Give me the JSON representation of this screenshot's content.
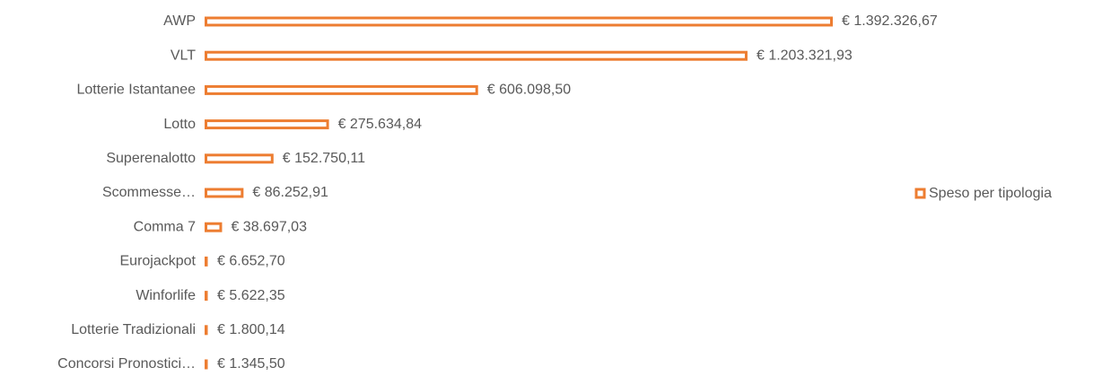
{
  "chart_data": {
    "type": "bar",
    "orientation": "horizontal",
    "categories": [
      "AWP",
      "VLT",
      "Lotterie Istantanee",
      "Lotto",
      "Superenalotto",
      "Scommesse…",
      "Comma 7",
      "Eurojackpot",
      "Winforlife",
      "Lotterie Tradizionali",
      "Concorsi Pronostici…"
    ],
    "series": [
      {
        "name": "Speso per tipologia",
        "color": "#ed7d31",
        "values": [
          1392326.67,
          1203321.93,
          606098.5,
          275634.84,
          152750.11,
          86252.91,
          38697.03,
          6652.7,
          5622.35,
          1800.14,
          1345.5
        ],
        "value_labels": [
          "€ 1.392.326,67",
          "€ 1.203.321,93",
          "€ 606.098,50",
          "€ 275.634,84",
          "€ 152.750,11",
          "€ 86.252,91",
          "€ 38.697,03",
          "€ 6.652,70",
          "€ 5.622,35",
          "€ 1.800,14",
          "€ 1.345,50"
        ]
      }
    ],
    "legend": "right"
  }
}
